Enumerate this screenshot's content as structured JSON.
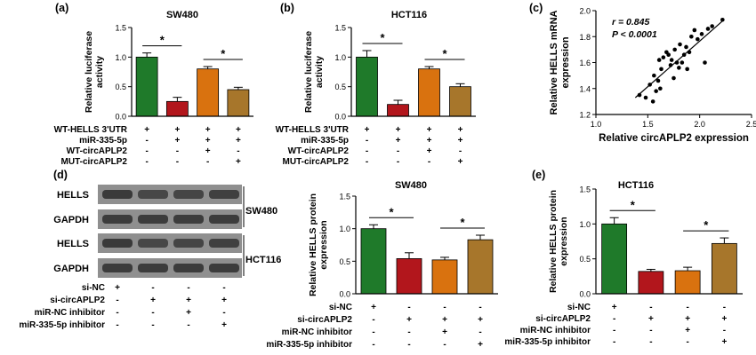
{
  "colors": {
    "green": "#1f7a2a",
    "red": "#b2161c",
    "orange": "#d9720f",
    "brown": "#a7762b",
    "blot_dark": "#3a3a3a",
    "blot_bg": "#8f8f8f"
  },
  "treatment_symbols": {
    "plus": "+",
    "minus": "-"
  },
  "blots": {
    "label": "(d)",
    "rows": [
      "HELLS",
      "GAPDH",
      "HELLS",
      "GAPDH"
    ],
    "groups": [
      "SW480",
      "HCT116"
    ],
    "treatments": [
      {
        "label": "si-NC",
        "marks": [
          "+",
          "-",
          "-",
          "-"
        ]
      },
      {
        "label": "si-circAPLP2",
        "marks": [
          "-",
          "+",
          "+",
          "+"
        ]
      },
      {
        "label": "miR-NC inhibitor",
        "marks": [
          "-",
          "-",
          "+",
          "-"
        ]
      },
      {
        "label": "miR-335-5p inhibitor",
        "marks": [
          "-",
          "-",
          "-",
          "+"
        ]
      }
    ]
  },
  "chart_data": [
    {
      "type": "bar",
      "label": "(a)",
      "title": "SW480",
      "ylabel": "Relative luciferase\nactivity",
      "ylim": [
        0,
        1.5
      ],
      "yticks": [
        "0.0",
        "0.5",
        "1.0",
        "1.5"
      ],
      "values": [
        1.0,
        0.25,
        0.8,
        0.45
      ],
      "errors": [
        0.07,
        0.07,
        0.04,
        0.04
      ],
      "significance": [
        [
          "*",
          0,
          1
        ],
        [
          "*",
          2,
          3
        ]
      ],
      "treatments": [
        {
          "label": "WT-HELLS 3'UTR",
          "marks": [
            "+",
            "+",
            "+",
            "+"
          ]
        },
        {
          "label": "miR-335-5p",
          "marks": [
            "-",
            "+",
            "+",
            "+"
          ]
        },
        {
          "label": "WT-circAPLP2",
          "marks": [
            "-",
            "-",
            "+",
            "-"
          ]
        },
        {
          "label": "MUT-circAPLP2",
          "marks": [
            "-",
            "-",
            "-",
            "+"
          ]
        }
      ]
    },
    {
      "type": "bar",
      "label": "(b)",
      "title": "HCT116",
      "ylabel": "Relative luciferase\nactivity",
      "ylim": [
        0,
        1.5
      ],
      "yticks": [
        "0.0",
        "0.5",
        "1.0",
        "1.5"
      ],
      "values": [
        1.0,
        0.2,
        0.8,
        0.5
      ],
      "errors": [
        0.11,
        0.07,
        0.04,
        0.05
      ],
      "significance": [
        [
          "*",
          0,
          1
        ],
        [
          "*",
          2,
          3
        ]
      ],
      "treatments": [
        {
          "label": "WT-HELLS 3'UTR",
          "marks": [
            "+",
            "+",
            "+",
            "+"
          ]
        },
        {
          "label": "miR-335-5p",
          "marks": [
            "-",
            "+",
            "+",
            "+"
          ]
        },
        {
          "label": "WT-circAPLP2",
          "marks": [
            "-",
            "-",
            "+",
            "-"
          ]
        },
        {
          "label": "MUT-circAPLP2",
          "marks": [
            "-",
            "-",
            "-",
            "+"
          ]
        }
      ]
    },
    {
      "type": "scatter",
      "label": "(c)",
      "xlabel": "Relative circAPLP2 expression",
      "ylabel": "Relative HELLS mRNA\nexpression",
      "xlim": [
        1.0,
        2.5
      ],
      "ylim": [
        1.2,
        2.0
      ],
      "xticks": [
        "1.0",
        "1.5",
        "2.0",
        "2.5"
      ],
      "yticks": [
        "1.2",
        "1.4",
        "1.6",
        "1.8",
        "2.0"
      ],
      "stats": [
        "r = 0.845",
        "P < 0.0001"
      ],
      "fit": {
        "x": [
          1.38,
          2.22
        ],
        "y": [
          1.33,
          1.92
        ]
      },
      "points": [
        [
          1.42,
          1.35
        ],
        [
          1.48,
          1.33
        ],
        [
          1.52,
          1.43
        ],
        [
          1.55,
          1.3
        ],
        [
          1.56,
          1.5
        ],
        [
          1.58,
          1.38
        ],
        [
          1.6,
          1.46
        ],
        [
          1.61,
          1.62
        ],
        [
          1.62,
          1.4
        ],
        [
          1.63,
          1.55
        ],
        [
          1.65,
          1.64
        ],
        [
          1.68,
          1.68
        ],
        [
          1.7,
          1.66
        ],
        [
          1.72,
          1.58
        ],
        [
          1.73,
          1.62
        ],
        [
          1.75,
          1.48
        ],
        [
          1.76,
          1.7
        ],
        [
          1.78,
          1.6
        ],
        [
          1.8,
          1.56
        ],
        [
          1.81,
          1.74
        ],
        [
          1.83,
          1.6
        ],
        [
          1.85,
          1.66
        ],
        [
          1.87,
          1.72
        ],
        [
          1.88,
          1.55
        ],
        [
          1.9,
          1.68
        ],
        [
          1.92,
          1.8
        ],
        [
          1.95,
          1.85
        ],
        [
          1.98,
          1.78
        ],
        [
          2.02,
          1.82
        ],
        [
          2.05,
          1.6
        ],
        [
          2.08,
          1.86
        ],
        [
          2.12,
          1.88
        ],
        [
          2.22,
          1.93
        ]
      ]
    },
    {
      "type": "bar",
      "title": "SW480",
      "ylabel": "Relative HELLS protein\nexpression",
      "ylim": [
        0,
        1.5
      ],
      "yticks": [
        "0.0",
        "0.5",
        "1.0",
        "1.5"
      ],
      "values": [
        1.0,
        0.54,
        0.52,
        0.83
      ],
      "errors": [
        0.06,
        0.09,
        0.04,
        0.07
      ],
      "significance": [
        [
          "*",
          0,
          1
        ],
        [
          "*",
          2,
          3
        ]
      ],
      "treatments": [
        {
          "label": "si-NC",
          "marks": [
            "+",
            "-",
            "-",
            "-"
          ]
        },
        {
          "label": "si-circAPLP2",
          "marks": [
            "-",
            "+",
            "+",
            "+"
          ]
        },
        {
          "label": "miR-NC inhibitor",
          "marks": [
            "-",
            "-",
            "+",
            "-"
          ]
        },
        {
          "label": "miR-335-5p inhibitor",
          "marks": [
            "-",
            "-",
            "-",
            "+"
          ]
        }
      ]
    },
    {
      "type": "bar",
      "label": "(e)",
      "title": "HCT116",
      "ylabel": "Relative HELLS protein\nexpression",
      "ylim": [
        0,
        1.5
      ],
      "yticks": [
        "0.0",
        "0.5",
        "1.0",
        "1.5"
      ],
      "values": [
        1.0,
        0.32,
        0.33,
        0.72
      ],
      "errors": [
        0.09,
        0.03,
        0.05,
        0.08
      ],
      "significance": [
        [
          "*",
          0,
          1
        ],
        [
          "*",
          2,
          3
        ]
      ],
      "treatments": [
        {
          "label": "si-NC",
          "marks": [
            "+",
            "-",
            "-",
            "-"
          ]
        },
        {
          "label": "si-circAPLP2",
          "marks": [
            "-",
            "+",
            "+",
            "+"
          ]
        },
        {
          "label": "miR-NC inhibitor",
          "marks": [
            "-",
            "-",
            "+",
            "-"
          ]
        },
        {
          "label": "miR-335-5p inhibitor",
          "marks": [
            "-",
            "-",
            "-",
            "+"
          ]
        }
      ]
    }
  ]
}
